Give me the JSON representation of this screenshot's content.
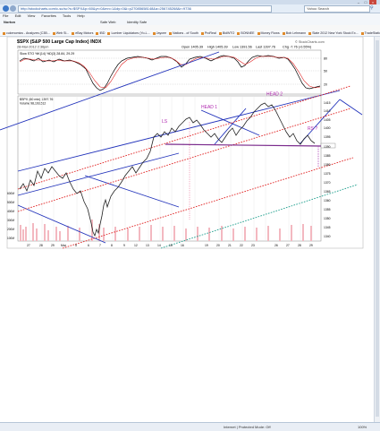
{
  "browser": {
    "url": "http://stockcharts.com/c-sc/sc?s=$SPX&p=60&yr=0&mn=1&dy=0&i=p27085658148&a=256745268&r=9736",
    "search_placeholder": "Yahoo Search",
    "menu": [
      "File",
      "Edit",
      "View",
      "Favorites",
      "Tools",
      "Help"
    ],
    "norton_label": "Norton",
    "toolbar_items": [
      "Safe Web",
      "Identity Safe"
    ],
    "favorites": [
      "cukenomics - Analyzes (C3B...",
      "Web Sl...",
      "eBay Motors",
      "IBD",
      "Lumber Liquidators (Yo-L...",
      "Jaycee",
      "Nations - of South",
      "ProReal",
      "BidWTO",
      "BONNEE",
      "Money Flows",
      "Bob Lehmann",
      "Slate 2012 New York Stock Ex...",
      "TradeStation",
      "TradeID",
      "Web-solution"
    ],
    "status_text": "Internet | Protected Mode: Off",
    "zoom": "100%"
  },
  "chart": {
    "symbol_title": "$SPX (S&P 500 Large Cap Index) INDX",
    "date": "28-Mar-2012 2:36pm",
    "watermark": "© StockCharts.com",
    "quote": {
      "open": "Open 1405.39",
      "high": "High 1405.39",
      "low": "Low 1391.56",
      "last": "Last 1397.76",
      "chg": "Chg -7.76 (-0.55%)"
    },
    "stoch_legend": "Slow STO %K(14) %D(3) 28.84, 29.29",
    "price_legend": "$SPX (60 min) 1397.76",
    "volume_legend": "Volume 98,193,512",
    "annotations": {
      "head1": "HEAD 1",
      "head2": "HEAD 2",
      "ls": "LS",
      "rs": "RS ?"
    },
    "stoch_axis": [
      "80",
      "50",
      "20"
    ],
    "price_axis": [
      "1415",
      "1410",
      "1405",
      "1400",
      "1395",
      "1390",
      "1385",
      "1380",
      "1375",
      "1370",
      "1365",
      "1360",
      "1355",
      "1350",
      "1345",
      "1340"
    ],
    "volume_axis": [
      "600M",
      "500M",
      "400M",
      "300M",
      "200M",
      "100M"
    ],
    "x_labels": [
      "27",
      "28",
      "29",
      "Mar",
      "5",
      "6",
      "7",
      "8",
      "9",
      "12",
      "13",
      "14",
      "15",
      "16",
      "19",
      "20",
      "21",
      "22",
      "23",
      "26",
      "27",
      "28",
      "29"
    ]
  }
}
